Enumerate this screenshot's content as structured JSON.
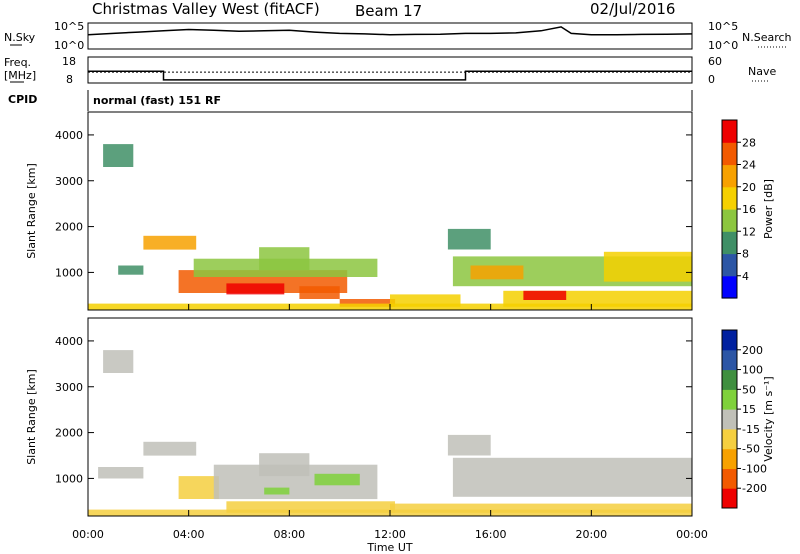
{
  "header": {
    "station": "Christmas Valley West (fitACF)",
    "beam": "Beam 17",
    "date": "02/Jul/2016"
  },
  "strip": {
    "nsky_label": "N.Sky",
    "nsearch_label": "N.Search",
    "nsky_ticks": [
      "10^5",
      "10^0"
    ],
    "nsearch_ticks": [
      "10^5",
      "10^0"
    ],
    "freq_label_top": "Freq.",
    "freq_label_bottom": "[MHz]",
    "freq_ticks": [
      "18",
      "8"
    ],
    "nave_label": "Nave",
    "nave_ticks": [
      "60",
      "0"
    ],
    "cpid_label": "CPID",
    "cpid_text": "normal (fast) 151 RF"
  },
  "colors": {
    "power_scale": [
      "#0000ff",
      "#2c56a5",
      "#3f8f66",
      "#8cc63f",
      "#f5d000",
      "#f7a100",
      "#f25a00",
      "#ee0000"
    ],
    "velocity_scale": [
      "#ee0000",
      "#f25a00",
      "#f7a100",
      "#f5cf40",
      "#c0c0b8",
      "#7fd13b",
      "#3f8f3f",
      "#2c56a5",
      "#00209f"
    ]
  },
  "chart_data": [
    {
      "type": "heatmap",
      "panel": "power",
      "ylabel": "Slant Range [km]",
      "xlabel": "",
      "xticks": [
        "00:00",
        "04:00",
        "08:00",
        "12:00",
        "16:00",
        "20:00",
        "00:00"
      ],
      "yticks": [
        1000,
        2000,
        3000,
        4000
      ],
      "xlim": [
        0,
        24
      ],
      "ylim": [
        180,
        4500
      ],
      "colorbar_label": "Power [dB]",
      "colorbar_ticks": [
        "4",
        "8",
        "12",
        "16",
        "20",
        "24",
        "28"
      ],
      "colorbar_range": [
        0,
        32
      ],
      "regions": [
        {
          "t0": 2.2,
          "t1": 4.3,
          "r0": 1500,
          "r1": 1800,
          "value": 22
        },
        {
          "t0": 3.6,
          "t1": 10.3,
          "r0": 550,
          "r1": 1050,
          "value": 24
        },
        {
          "t0": 4.2,
          "t1": 11.5,
          "r0": 900,
          "r1": 1300,
          "value": 14
        },
        {
          "t0": 6.8,
          "t1": 8.8,
          "r0": 1050,
          "r1": 1550,
          "value": 12
        },
        {
          "t0": 5.5,
          "t1": 7.8,
          "r0": 520,
          "r1": 760,
          "value": 28
        },
        {
          "t0": 8.4,
          "t1": 10.0,
          "r0": 420,
          "r1": 700,
          "value": 26
        },
        {
          "t0": 10.0,
          "t1": 12.2,
          "r0": 250,
          "r1": 420,
          "value": 27
        },
        {
          "t0": 12.0,
          "t1": 14.8,
          "r0": 250,
          "r1": 520,
          "value": 16
        },
        {
          "t0": 14.3,
          "t1": 16.0,
          "r0": 1500,
          "r1": 1950,
          "value": 10
        },
        {
          "t0": 14.5,
          "t1": 24.0,
          "r0": 700,
          "r1": 1350,
          "value": 14
        },
        {
          "t0": 15.2,
          "t1": 17.3,
          "r0": 850,
          "r1": 1150,
          "value": 22
        },
        {
          "t0": 16.5,
          "t1": 24.0,
          "r0": 250,
          "r1": 600,
          "value": 18
        },
        {
          "t0": 17.3,
          "t1": 19.0,
          "r0": 400,
          "r1": 600,
          "value": 28
        },
        {
          "t0": 20.5,
          "t1": 24.0,
          "r0": 800,
          "r1": 1450,
          "value": 18
        },
        {
          "t0": 1.2,
          "t1": 2.2,
          "r0": 950,
          "r1": 1150,
          "value": 8
        },
        {
          "t0": 0.6,
          "t1": 1.8,
          "r0": 3300,
          "r1": 3800,
          "value": 8
        },
        {
          "t0": 0.0,
          "t1": 24.0,
          "r0": 180,
          "r1": 320,
          "value": 18
        }
      ]
    },
    {
      "type": "heatmap",
      "panel": "velocity",
      "ylabel": "Slant Range [km]",
      "xlabel": "Time UT",
      "xticks": [
        "00:00",
        "04:00",
        "08:00",
        "12:00",
        "16:00",
        "20:00",
        "00:00"
      ],
      "yticks": [
        1000,
        2000,
        3000,
        4000
      ],
      "xlim": [
        0,
        24
      ],
      "ylim": [
        180,
        4500
      ],
      "colorbar_label": "Velocity [m s⁻¹]",
      "colorbar_ticks": [
        "-200",
        "-100",
        "-50",
        "-15",
        "15",
        "50",
        "100",
        "200"
      ],
      "colorbar_range": [
        -250,
        250
      ],
      "regions": [
        {
          "t0": 2.2,
          "t1": 4.3,
          "r0": 1500,
          "r1": 1800,
          "value": 0
        },
        {
          "t0": 3.6,
          "t1": 5.2,
          "r0": 550,
          "r1": 1050,
          "value": -60
        },
        {
          "t0": 5.0,
          "t1": 11.5,
          "r0": 550,
          "r1": 1300,
          "value": 0
        },
        {
          "t0": 6.8,
          "t1": 8.8,
          "r0": 1050,
          "r1": 1550,
          "value": 0
        },
        {
          "t0": 9.0,
          "t1": 10.8,
          "r0": 850,
          "r1": 1100,
          "value": 40
        },
        {
          "t0": 7.0,
          "t1": 8.0,
          "r0": 650,
          "r1": 800,
          "value": 40
        },
        {
          "t0": 5.5,
          "t1": 12.2,
          "r0": 250,
          "r1": 500,
          "value": -40
        },
        {
          "t0": 12.0,
          "t1": 24.0,
          "r0": 250,
          "r1": 450,
          "value": -30
        },
        {
          "t0": 14.3,
          "t1": 16.0,
          "r0": 1500,
          "r1": 1950,
          "value": 0
        },
        {
          "t0": 14.5,
          "t1": 24.0,
          "r0": 600,
          "r1": 1450,
          "value": 0
        },
        {
          "t0": 0.4,
          "t1": 2.2,
          "r0": 1000,
          "r1": 1250,
          "value": 0
        },
        {
          "t0": 0.6,
          "t1": 1.8,
          "r0": 3300,
          "r1": 3800,
          "value": 0
        },
        {
          "t0": 0.0,
          "t1": 24.0,
          "r0": 180,
          "r1": 320,
          "value": -40
        }
      ]
    }
  ],
  "series": {
    "nsky_trace": [
      [
        0,
        0.55
      ],
      [
        1,
        0.6
      ],
      [
        2,
        0.65
      ],
      [
        3,
        0.7
      ],
      [
        4,
        0.75
      ],
      [
        5,
        0.72
      ],
      [
        6,
        0.68
      ],
      [
        7,
        0.7
      ],
      [
        8,
        0.72
      ],
      [
        9,
        0.65
      ],
      [
        10,
        0.6
      ],
      [
        11,
        0.58
      ],
      [
        12,
        0.55
      ],
      [
        13,
        0.56
      ],
      [
        14,
        0.57
      ],
      [
        15,
        0.6
      ],
      [
        16,
        0.6
      ],
      [
        17,
        0.62
      ],
      [
        18,
        0.7
      ],
      [
        18.8,
        0.85
      ],
      [
        19.2,
        0.6
      ],
      [
        20,
        0.55
      ],
      [
        21,
        0.55
      ],
      [
        22,
        0.56
      ],
      [
        23,
        0.57
      ],
      [
        24,
        0.58
      ]
    ],
    "freq_trace": [
      [
        0,
        12.5
      ],
      [
        3,
        12.5
      ],
      [
        3,
        9.2
      ],
      [
        15,
        9.2
      ],
      [
        15,
        12.5
      ],
      [
        24,
        12.5
      ]
    ],
    "nave_level": 25
  }
}
